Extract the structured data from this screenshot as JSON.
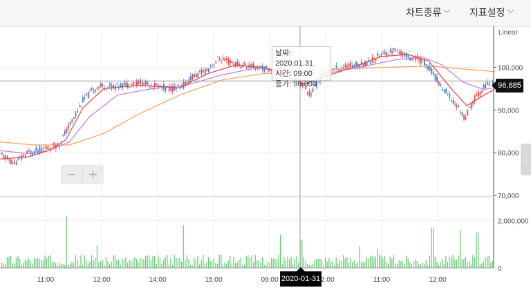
{
  "toolbar": {
    "chart_type_label": "차트종류",
    "indicator_label": "지표설정"
  },
  "scale_label": "Linear",
  "tooltip": {
    "date": "날짜: 2020.01.31",
    "time": "시간: 09:00",
    "close": "종가: 96,800"
  },
  "current_price_label": "96,885",
  "crosshair_date_label": "2020-01-31",
  "zoom": {
    "minus": "−",
    "plus": "+"
  },
  "side_tab_icon": "chevron-left-icon",
  "colors": {
    "up": "#e8413f",
    "down": "#2f7fd6",
    "ma_short": "#e8413f",
    "ma_mid": "#c27ee6",
    "ma_long": "#f3a15a",
    "volume": "#5cc86c",
    "grid": "#eeeeee"
  },
  "chart_data": [
    {
      "type": "candlestick",
      "ylim": [
        70000,
        108000
      ],
      "y_ticks": [
        {
          "value": 100000,
          "label": "100,000"
        },
        {
          "value": 90000,
          "label": "90,000"
        },
        {
          "value": 80000,
          "label": "80,000"
        },
        {
          "value": 70000,
          "label": "70,000"
        }
      ],
      "x_ticks": [
        "11:00",
        "12:00",
        "14:00",
        "15:00",
        "09:00",
        "12:00",
        "11:00",
        "12:00"
      ],
      "price_path": [
        [
          0,
          79500
        ],
        [
          20,
          77500
        ],
        [
          40,
          80000
        ],
        [
          65,
          81000
        ],
        [
          85,
          82000
        ],
        [
          100,
          86500
        ],
        [
          120,
          92500
        ],
        [
          140,
          95500
        ],
        [
          165,
          95500
        ],
        [
          200,
          96500
        ],
        [
          240,
          95200
        ],
        [
          260,
          95000
        ],
        [
          275,
          97500
        ],
        [
          300,
          99500
        ],
        [
          315,
          102000
        ],
        [
          345,
          100500
        ],
        [
          375,
          100000
        ],
        [
          395,
          99000
        ],
        [
          415,
          99000
        ],
        [
          435,
          96500
        ],
        [
          448,
          93500
        ],
        [
          460,
          97000
        ],
        [
          480,
          99500
        ],
        [
          510,
          100500
        ],
        [
          530,
          101000
        ],
        [
          550,
          103000
        ],
        [
          570,
          104000
        ],
        [
          590,
          102500
        ],
        [
          610,
          101500
        ],
        [
          620,
          100000
        ],
        [
          635,
          96000
        ],
        [
          660,
          91000
        ],
        [
          672,
          88000
        ],
        [
          685,
          92500
        ],
        [
          700,
          95500
        ],
        [
          715,
          96800
        ]
      ],
      "ma_short": [
        [
          0,
          78500
        ],
        [
          40,
          79000
        ],
        [
          70,
          80500
        ],
        [
          95,
          83000
        ],
        [
          120,
          90500
        ],
        [
          150,
          95000
        ],
        [
          200,
          95800
        ],
        [
          260,
          95200
        ],
        [
          300,
          98500
        ],
        [
          340,
          100500
        ],
        [
          380,
          100000
        ],
        [
          410,
          98500
        ],
        [
          440,
          96000
        ],
        [
          470,
          97800
        ],
        [
          510,
          100000
        ],
        [
          550,
          102500
        ],
        [
          590,
          103000
        ],
        [
          620,
          101500
        ],
        [
          650,
          95500
        ],
        [
          675,
          91000
        ],
        [
          700,
          93500
        ],
        [
          715,
          94800
        ]
      ],
      "ma_mid": [
        [
          0,
          80500
        ],
        [
          40,
          79800
        ],
        [
          70,
          80500
        ],
        [
          100,
          82500
        ],
        [
          130,
          88500
        ],
        [
          170,
          93500
        ],
        [
          220,
          95000
        ],
        [
          270,
          95800
        ],
        [
          320,
          98200
        ],
        [
          370,
          99800
        ],
        [
          420,
          99200
        ],
        [
          470,
          98500
        ],
        [
          520,
          100000
        ],
        [
          570,
          101700
        ],
        [
          610,
          102500
        ],
        [
          640,
          100500
        ],
        [
          670,
          96500
        ],
        [
          700,
          94800
        ],
        [
          715,
          95200
        ]
      ],
      "ma_long": [
        [
          0,
          82500
        ],
        [
          50,
          81800
        ],
        [
          100,
          81800
        ],
        [
          150,
          84500
        ],
        [
          200,
          89000
        ],
        [
          260,
          93500
        ],
        [
          320,
          97000
        ],
        [
          380,
          98500
        ],
        [
          440,
          99200
        ],
        [
          500,
          99600
        ],
        [
          560,
          100000
        ],
        [
          620,
          100300
        ],
        [
          670,
          99600
        ],
        [
          715,
          99000
        ]
      ],
      "last_price": 96885,
      "reference_price": 96800
    },
    {
      "type": "bar",
      "name": "volume",
      "ylim": [
        0,
        3000000
      ],
      "y_ticks": [
        {
          "value": 2000000,
          "label": "2,000,000"
        },
        {
          "value": 0,
          "label": "0"
        }
      ],
      "peaks": [
        [
          95,
          2200000
        ],
        [
          140,
          950000
        ],
        [
          265,
          1800000
        ],
        [
          405,
          1400000
        ],
        [
          435,
          1200000
        ],
        [
          520,
          900000
        ],
        [
          545,
          800000
        ],
        [
          625,
          1700000
        ],
        [
          665,
          1600000
        ],
        [
          690,
          1500000
        ]
      ],
      "base_level": 350000
    }
  ]
}
